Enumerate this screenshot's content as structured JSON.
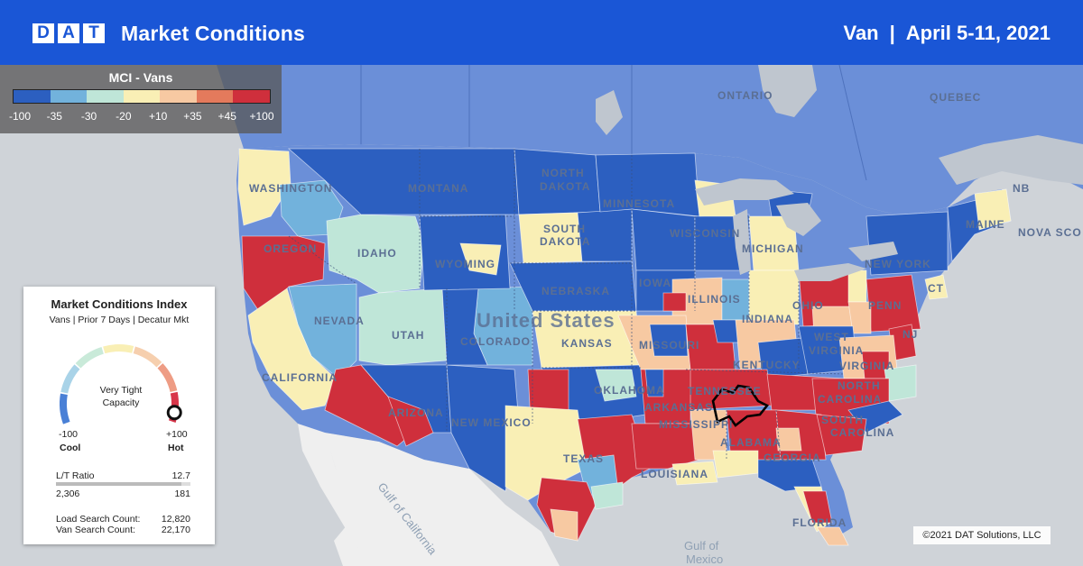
{
  "header": {
    "logo_letters": [
      "D",
      "A",
      "T"
    ],
    "title": "Market Conditions",
    "equipment": "Van",
    "separator": "|",
    "date_range": "April 5-11, 2021"
  },
  "legend": {
    "title": "MCI - Vans",
    "colors": [
      "#2c5fc0",
      "#72b2dc",
      "#bfe6d8",
      "#f9efb5",
      "#f7c9a2",
      "#e47a5c",
      "#cf2f3c"
    ],
    "ticks": [
      "-100",
      "-35",
      "-30",
      "-20",
      "+10",
      "+35",
      "+45",
      "+100"
    ]
  },
  "panel": {
    "title": "Market Conditions Index",
    "subtitle": "Vans | Prior 7 Days | Decatur Mkt",
    "gauge_value": 0.95,
    "status_line1": "Very Tight",
    "status_line2": "Capacity",
    "min_value": "-100",
    "min_label": "Cool",
    "max_value": "+100",
    "max_label": "Hot",
    "lt_ratio_label": "L/T Ratio",
    "lt_ratio_value": "12.7",
    "lt_ratio_fill": 0.93,
    "lt_left_value": "2,306",
    "lt_right_value": "181",
    "load_search_label": "Load Search Count:",
    "load_search_value": "12,820",
    "van_search_label": "Van Search Count:",
    "van_search_value": "22,170"
  },
  "map": {
    "labels": {
      "ontario": "ONTARIO",
      "quebec": "QUEBEC",
      "nb": "NB",
      "nova_scotia": "NOVA SCO",
      "washington": "WASHINGTON",
      "montana": "MONTANA",
      "north_dakota_1": "NORTH",
      "north_dakota_2": "DAKOTA",
      "minnesota": "MINNESOTA",
      "south_dakota_1": "SOUTH",
      "south_dakota_2": "DAKOTA",
      "wisconsin": "WISCONSIN",
      "michigan": "MICHIGAN",
      "maine": "MAINE",
      "oregon": "OREGON",
      "idaho": "IDAHO",
      "wyoming": "WYOMING",
      "new_york": "NEW YORK",
      "ct": "CT",
      "nebraska": "NEBRASKA",
      "iowa": "IOWA",
      "illinois": "ILLINOIS",
      "indiana": "INDIANA",
      "ohio": "OHIO",
      "penn": "PENN",
      "nj": "NJ",
      "nevada": "NEVADA",
      "utah": "UTAH",
      "colorado": "COLORADO",
      "united_states": "United States",
      "kansas": "KANSAS",
      "missouri": "MISSOURI",
      "kentucky": "KENTUCKY",
      "virginia": "VIRGINIA",
      "west_virginia_1": "WEST",
      "west_virginia_2": "VIRGINIA",
      "california": "CALIFORNIA",
      "oklahoma": "OKLAHOMA",
      "tennessee": "TENNESSEE",
      "north_carolina_1": "NORTH",
      "north_carolina_2": "CAROLINA",
      "arizona": "ARIZONA",
      "new_mexico": "NEW MEXICO",
      "arkansas": "ARKANSAS",
      "mississippi": "MISSISSIPPI",
      "alabama": "ALABAMA",
      "south_carolina_1": "SOUTH",
      "south_carolina_2": "CAROLINA",
      "georgia": "GEORGIA",
      "texas": "TEXAS",
      "louisiana": "LOUISIANA",
      "florida": "FLORIDA",
      "gulf_california": "Gulf of California",
      "gulf_mexico_1": "Gulf of",
      "gulf_mexico_2": "Mexico"
    }
  },
  "copyright": "©2021 DAT Solutions, LLC"
}
